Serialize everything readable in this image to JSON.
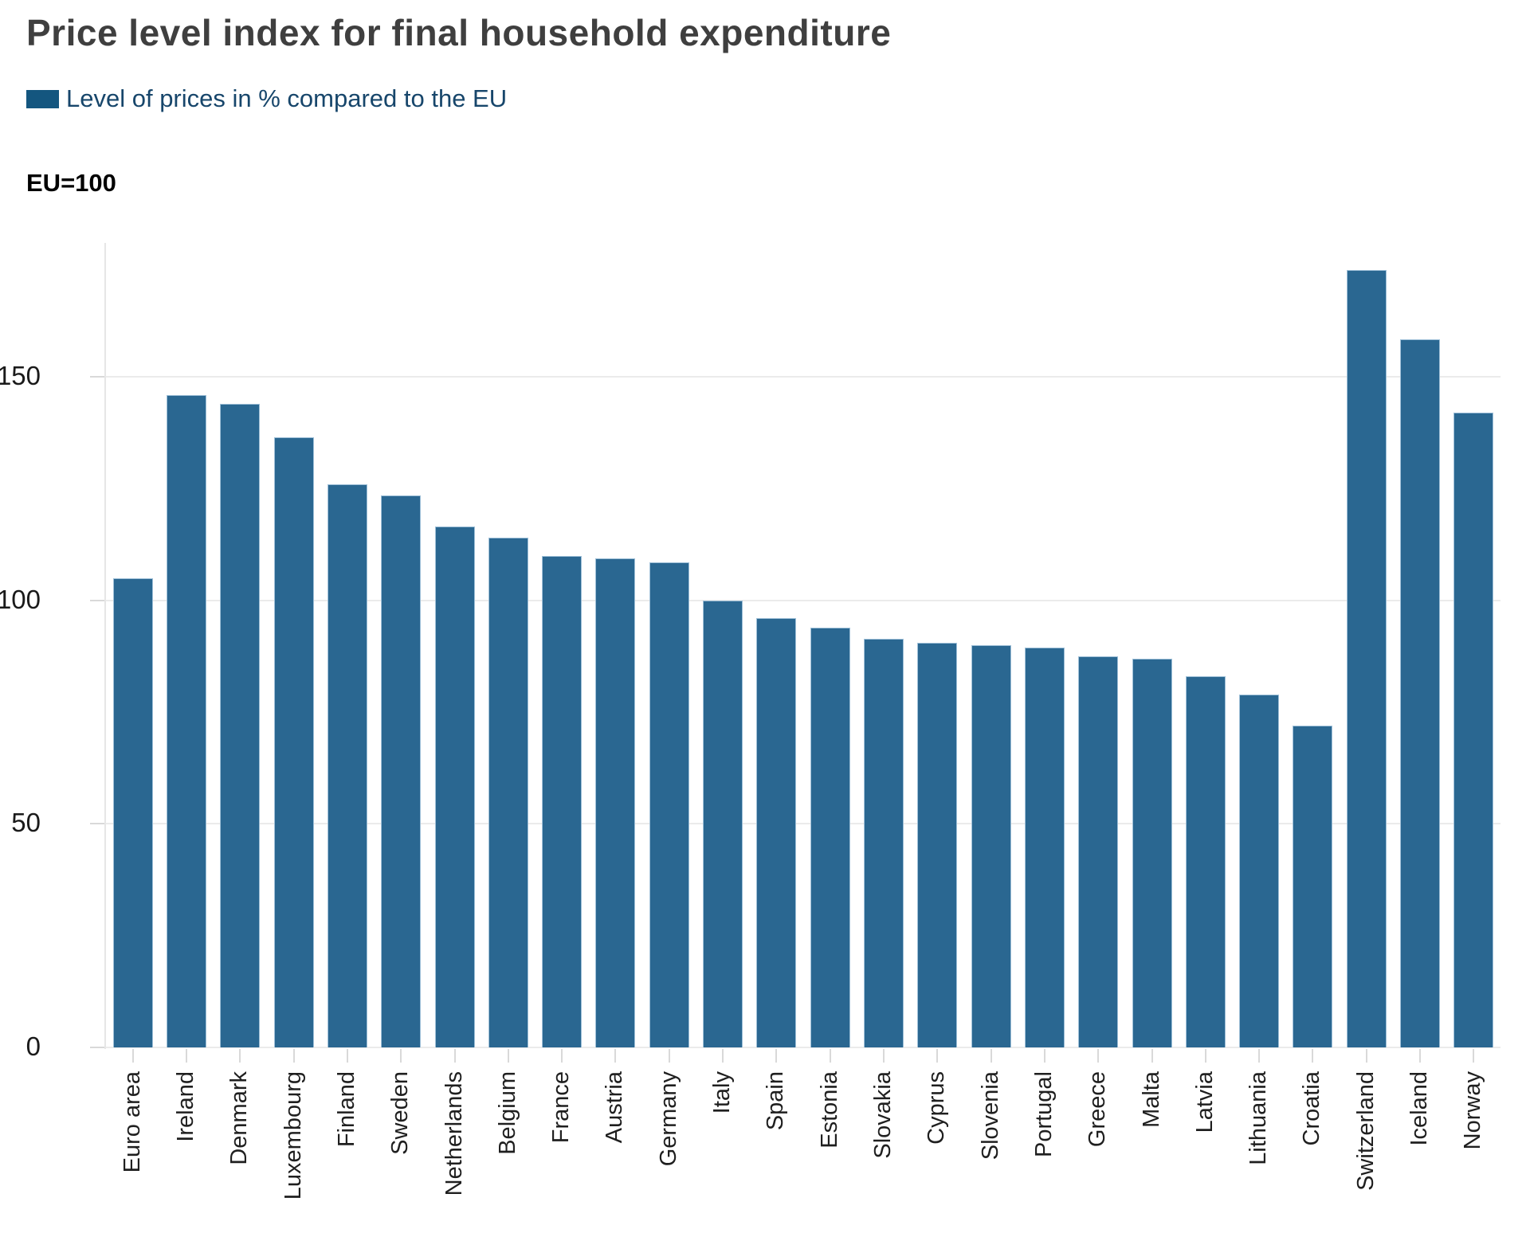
{
  "header": {
    "title": "Price level index for final household expenditure",
    "legend_label": "Level of prices in % compared to the EU",
    "axis_unit": "EU=100"
  },
  "colors": {
    "bar_fill": "#2a6791",
    "bar_border": "#9fc0d8",
    "legend_swatch": "#14567f",
    "legend_text": "#17466b",
    "title_text": "#3f3f3f",
    "gridline": "#ebebeb",
    "axis_line": "#e6e6e6"
  },
  "chart_data": {
    "type": "bar",
    "title": "Price level index for final household expenditure",
    "series_name": "Level of prices in % compared to the EU",
    "xlabel": "",
    "ylabel": "EU=100",
    "ylim": [
      0,
      180
    ],
    "yticks": [
      0,
      50,
      100,
      150
    ],
    "grid": "horizontal",
    "legend_position": "top-left",
    "categories": [
      "Euro area",
      "Ireland",
      "Denmark",
      "Luxembourg",
      "Finland",
      "Sweden",
      "Netherlands",
      "Belgium",
      "France",
      "Austria",
      "Germany",
      "Italy",
      "Spain",
      "Estonia",
      "Slovakia",
      "Cyprus",
      "Slovenia",
      "Portugal",
      "Greece",
      "Malta",
      "Latvia",
      "Lithuania",
      "Croatia",
      "Switzerland",
      "Iceland",
      "Norway"
    ],
    "values": [
      105,
      146,
      144,
      136.5,
      126,
      123.5,
      116.5,
      114,
      110,
      109.5,
      108.5,
      100,
      96,
      94,
      91.5,
      90.5,
      90,
      89.5,
      87.5,
      87,
      83,
      79,
      72,
      174,
      158.5,
      142
    ]
  }
}
